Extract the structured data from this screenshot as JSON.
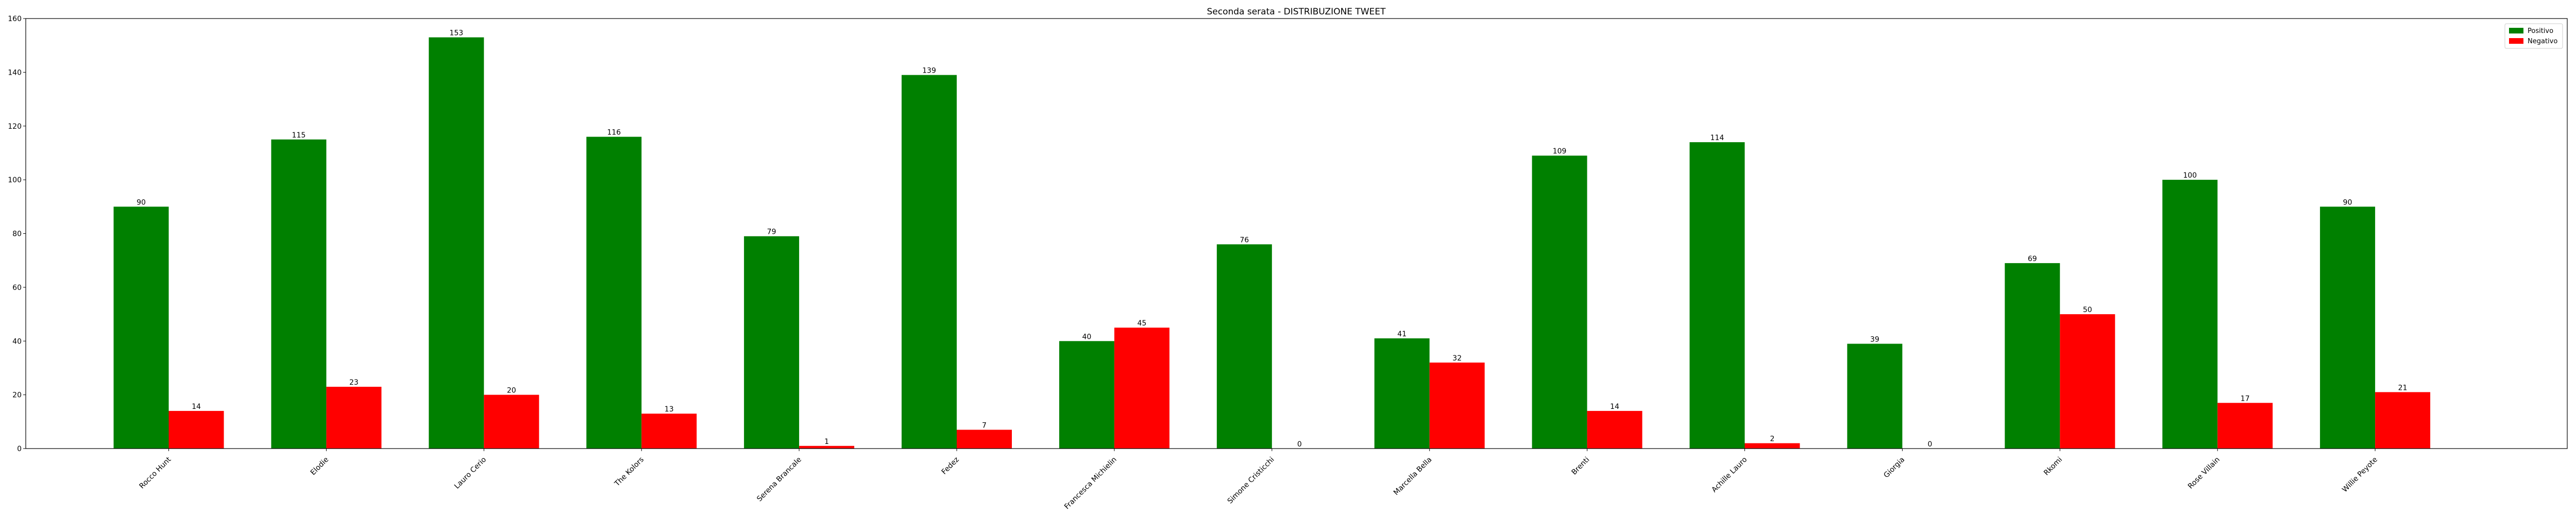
{
  "chart_data": {
    "type": "bar",
    "title": "Seconda serata - DISTRIBUZIONE TWEET",
    "xlabel": "",
    "ylabel": "",
    "ylim": [
      0,
      160
    ],
    "yticks": [
      0,
      20,
      40,
      60,
      80,
      100,
      120,
      140,
      160
    ],
    "grid": false,
    "legend_position": "top-right",
    "categories": [
      "Rocco Hunt",
      "Elodie",
      "Lauro Cerio",
      "The Kolors",
      "Serena Brancale",
      "Fedez",
      "Francesca Michielin",
      "Simone Cristicchi",
      "Marcella Bella",
      "Brenti",
      "Achille Lauro",
      "Giorgia",
      "Rkomi",
      "Rose Villain",
      "Willie Peyote"
    ],
    "series": [
      {
        "name": "Positivo",
        "color": "#008000",
        "values": [
          90,
          115,
          153,
          116,
          79,
          139,
          40,
          76,
          41,
          109,
          114,
          39,
          69,
          100,
          90
        ]
      },
      {
        "name": "Negativo",
        "color": "#ff0000",
        "values": [
          14,
          23,
          20,
          13,
          1,
          7,
          45,
          0,
          32,
          14,
          2,
          0,
          50,
          17,
          21
        ]
      }
    ]
  }
}
